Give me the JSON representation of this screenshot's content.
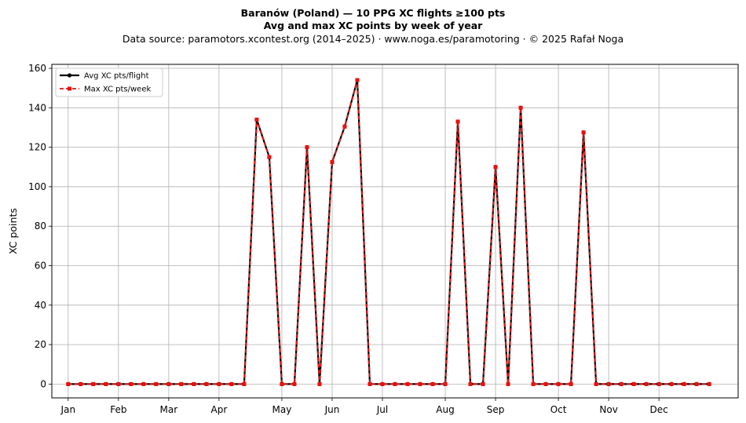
{
  "header": {
    "title": "Baranów (Poland)  —  10 PPG XC flights ≥100 pts",
    "subtitle": "Avg and max XC points by week of year",
    "source": "Data source: paramotors.xcontest.org (2014–2025)  ·  www.noga.es/paramotoring  ·  © 2025 Rafał Noga"
  },
  "chart_data": {
    "type": "line",
    "title": "Baranów (Poland)  —  10 PPG XC flights ≥100 pts",
    "subtitle": "Avg and max XC points by week of year",
    "xlabel": "",
    "ylabel": "XC points",
    "ylim": [
      -7,
      162
    ],
    "xlim": [
      -1.3,
      53.3
    ],
    "yticks": [
      0,
      20,
      40,
      60,
      80,
      100,
      120,
      140,
      160
    ],
    "month_ticks": [
      {
        "week": 0,
        "label": "Jan"
      },
      {
        "week": 4,
        "label": "Feb"
      },
      {
        "week": 8,
        "label": "Mar"
      },
      {
        "week": 12,
        "label": "Apr"
      },
      {
        "week": 17,
        "label": "May"
      },
      {
        "week": 21,
        "label": "Jun"
      },
      {
        "week": 25,
        "label": "Jul"
      },
      {
        "week": 30,
        "label": "Aug"
      },
      {
        "week": 34,
        "label": "Sep"
      },
      {
        "week": 39,
        "label": "Oct"
      },
      {
        "week": 43,
        "label": "Nov"
      },
      {
        "week": 47,
        "label": "Dec"
      }
    ],
    "grid": true,
    "legend_position": "top-left",
    "x": [
      0,
      1,
      2,
      3,
      4,
      5,
      6,
      7,
      8,
      9,
      10,
      11,
      12,
      13,
      14,
      15,
      16,
      17,
      18,
      19,
      20,
      21,
      22,
      23,
      24,
      25,
      26,
      27,
      28,
      29,
      30,
      31,
      32,
      33,
      34,
      35,
      36,
      37,
      38,
      39,
      40,
      41,
      42,
      43,
      44,
      45,
      46,
      47,
      48,
      49,
      50,
      51
    ],
    "series": [
      {
        "name": "Avg XC pts/flight",
        "color": "#000000",
        "style": "solid",
        "marker": "circle",
        "values": [
          0,
          0,
          0,
          0,
          0,
          0,
          0,
          0,
          0,
          0,
          0,
          0,
          0,
          0,
          0,
          134,
          115,
          0,
          0,
          120,
          0,
          112.5,
          130.5,
          154,
          0,
          0,
          0,
          0,
          0,
          0,
          0,
          133,
          0,
          0,
          110,
          0,
          140,
          0,
          0,
          0,
          0,
          127.5,
          0,
          0,
          0,
          0,
          0,
          0,
          0,
          0,
          0,
          0
        ]
      },
      {
        "name": "Max XC pts/week",
        "color": "#e8110f",
        "style": "dashed",
        "marker": "square",
        "values": [
          0,
          0,
          0,
          0,
          0,
          0,
          0,
          0,
          0,
          0,
          0,
          0,
          0,
          0,
          0,
          134,
          115,
          0,
          0,
          120,
          0,
          112.5,
          130.5,
          154,
          0,
          0,
          0,
          0,
          0,
          0,
          0,
          133,
          0,
          0,
          110,
          0,
          140,
          0,
          0,
          0,
          0,
          127.5,
          0,
          0,
          0,
          0,
          0,
          0,
          0,
          0,
          0,
          0
        ]
      }
    ]
  }
}
